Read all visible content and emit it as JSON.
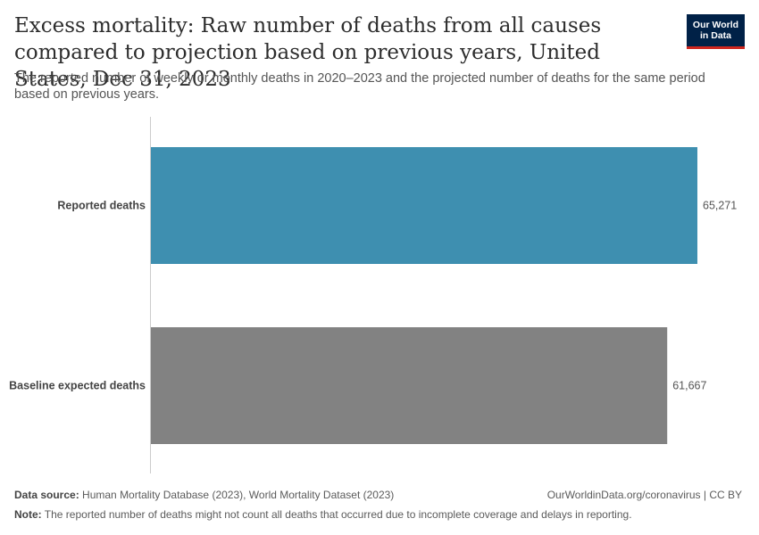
{
  "header": {
    "title": "Excess mortality: Raw number of deaths from all causes compared to projection based on previous years, United States, Dec 31, 2023",
    "subtitle": "The reported number of weekly or monthly deaths in 2020–2023 and the projected number of deaths for the same period based on previous years."
  },
  "logo": {
    "line1": "Our World",
    "line2": "in Data",
    "bg_color": "#002147",
    "accent_color": "#ce261e"
  },
  "footer": {
    "source_label": "Data source:",
    "source_text": "Human Mortality Database (2023), World Mortality Dataset (2023)",
    "link_text": "OurWorldinData.org/coronavirus | CC BY",
    "note_label": "Note:",
    "note_text": "The reported number of deaths might not count all deaths that occurred due to incomplete coverage and delays in reporting."
  },
  "chart_data": {
    "type": "bar",
    "orientation": "horizontal",
    "categories": [
      "Reported deaths",
      "Baseline expected deaths"
    ],
    "values": [
      65271,
      61667
    ],
    "value_labels": [
      "65,271",
      "61,667"
    ],
    "colors": [
      "#3e8fb0",
      "#828282"
    ],
    "xlim": [
      0,
      65271
    ],
    "grid": false
  }
}
